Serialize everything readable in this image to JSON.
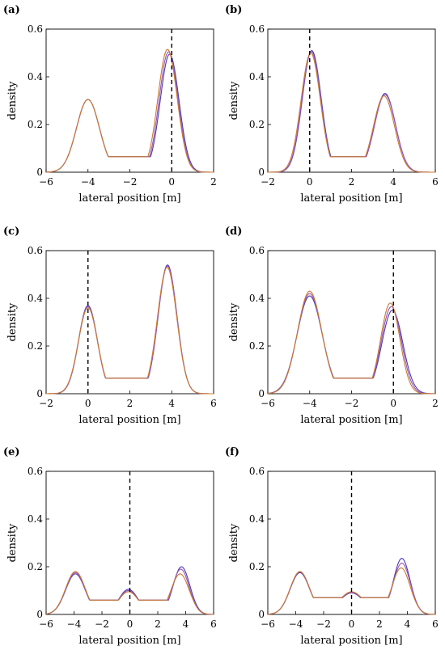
{
  "chart_data": [
    {
      "panel_label": "(a)",
      "type": "line",
      "xlabel": "lateral position [m]",
      "ylabel": "density",
      "xlim": [
        -6,
        2
      ],
      "ylim": [
        0,
        0.6
      ],
      "xticks": [
        -6,
        -4,
        -2,
        0,
        2
      ],
      "yticks": [
        0,
        0.2,
        0.4,
        0.6
      ],
      "dashed_vline_x": 0,
      "series": [
        {
          "color": "#4a3ab8",
          "peaks": [
            [
              -4.0,
              0.305,
              0.55
            ],
            [
              -0.1,
              0.495,
              0.45
            ]
          ],
          "baseline": 0.0
        },
        {
          "color": "#9b55b0",
          "peaks": [
            [
              -4.0,
              0.305,
              0.55
            ],
            [
              -0.15,
              0.505,
              0.45
            ]
          ],
          "baseline": 0.0
        },
        {
          "color": "#c97a30",
          "peaks": [
            [
              -4.0,
              0.305,
              0.55
            ],
            [
              -0.2,
              0.515,
              0.46
            ]
          ],
          "baseline": 0.0
        }
      ]
    },
    {
      "panel_label": "(b)",
      "type": "line",
      "xlabel": "lateral position [m]",
      "ylabel": "density",
      "xlim": [
        -2,
        6
      ],
      "ylim": [
        0,
        0.6
      ],
      "xticks": [
        -2,
        0,
        2,
        4,
        6
      ],
      "yticks": [
        0,
        0.2,
        0.4,
        0.6
      ],
      "dashed_vline_x": 0,
      "series": [
        {
          "color": "#4a3ab8",
          "peaks": [
            [
              0.1,
              0.51,
              0.45
            ],
            [
              3.6,
              0.33,
              0.5
            ]
          ],
          "baseline": 0.0
        },
        {
          "color": "#9b55b0",
          "peaks": [
            [
              0.08,
              0.505,
              0.45
            ],
            [
              3.6,
              0.325,
              0.5
            ]
          ],
          "baseline": 0.0
        },
        {
          "color": "#c97a30",
          "peaks": [
            [
              0.05,
              0.5,
              0.46
            ],
            [
              3.55,
              0.32,
              0.5
            ]
          ],
          "baseline": 0.0
        }
      ]
    },
    {
      "panel_label": "(c)",
      "type": "line",
      "xlabel": "lateral position [m]",
      "ylabel": "density",
      "xlim": [
        -2,
        6
      ],
      "ylim": [
        0,
        0.6
      ],
      "xticks": [
        -2,
        0,
        2,
        4,
        6
      ],
      "yticks": [
        0,
        0.2,
        0.4,
        0.6
      ],
      "dashed_vline_x": 0,
      "series": [
        {
          "color": "#4a3ab8",
          "peaks": [
            [
              0.0,
              0.37,
              0.45
            ],
            [
              3.8,
              0.54,
              0.45
            ]
          ],
          "baseline": 0.0
        },
        {
          "color": "#9b55b0",
          "peaks": [
            [
              0.0,
              0.365,
              0.45
            ],
            [
              3.8,
              0.535,
              0.45
            ]
          ],
          "baseline": 0.0
        },
        {
          "color": "#c97a30",
          "peaks": [
            [
              0.0,
              0.36,
              0.46
            ],
            [
              3.78,
              0.53,
              0.46
            ]
          ],
          "baseline": 0.0
        }
      ]
    },
    {
      "panel_label": "(d)",
      "type": "line",
      "xlabel": "lateral position [m]",
      "ylabel": "density",
      "xlim": [
        -6,
        2
      ],
      "ylim": [
        0,
        0.6
      ],
      "xticks": [
        -6,
        -4,
        -2,
        0,
        2
      ],
      "yticks": [
        0,
        0.2,
        0.4,
        0.6
      ],
      "dashed_vline_x": 0,
      "series": [
        {
          "color": "#4a3ab8",
          "peaks": [
            [
              -4.0,
              0.41,
              0.6
            ],
            [
              -0.05,
              0.35,
              0.5
            ]
          ],
          "baseline": 0.0
        },
        {
          "color": "#9b55b0",
          "peaks": [
            [
              -4.0,
              0.42,
              0.59
            ],
            [
              -0.1,
              0.365,
              0.48
            ]
          ],
          "baseline": 0.0
        },
        {
          "color": "#c97a30",
          "peaks": [
            [
              -4.0,
              0.43,
              0.58
            ],
            [
              -0.15,
              0.38,
              0.46
            ]
          ],
          "baseline": 0.0
        }
      ]
    },
    {
      "panel_label": "(e)",
      "type": "line",
      "xlabel": "lateral position [m]",
      "ylabel": "density",
      "xlim": [
        -6,
        6
      ],
      "ylim": [
        0,
        0.6
      ],
      "xticks": [
        -6,
        -4,
        -2,
        0,
        2,
        4,
        6
      ],
      "yticks": [
        0,
        0.2,
        0.4,
        0.6
      ],
      "dashed_vline_x": 0,
      "series": [
        {
          "color": "#4a3ab8",
          "peaks": [
            [
              -3.9,
              0.17,
              0.7
            ],
            [
              -0.1,
              0.105,
              0.7
            ],
            [
              3.7,
              0.2,
              0.6
            ]
          ],
          "baseline": 0.06
        },
        {
          "color": "#9b55b0",
          "peaks": [
            [
              -3.9,
              0.175,
              0.7
            ],
            [
              -0.1,
              0.1,
              0.7
            ],
            [
              3.65,
              0.19,
              0.6
            ]
          ],
          "baseline": 0.06
        },
        {
          "color": "#c97a30",
          "peaks": [
            [
              -3.9,
              0.18,
              0.7
            ],
            [
              -0.1,
              0.095,
              0.75
            ],
            [
              3.6,
              0.17,
              0.65
            ]
          ],
          "baseline": 0.06
        }
      ]
    },
    {
      "panel_label": "(f)",
      "type": "line",
      "xlabel": "lateral position [m]",
      "ylabel": "density",
      "xlim": [
        -6,
        6
      ],
      "ylim": [
        0,
        0.6
      ],
      "xticks": [
        -6,
        -4,
        -2,
        0,
        2,
        4,
        6
      ],
      "yticks": [
        0,
        0.2,
        0.4,
        0.6
      ],
      "dashed_vline_x": 0,
      "series": [
        {
          "color": "#4a3ab8",
          "peaks": [
            [
              -3.7,
              0.175,
              0.7
            ],
            [
              0.0,
              0.09,
              0.9
            ],
            [
              3.6,
              0.235,
              0.6
            ]
          ],
          "baseline": 0.07
        },
        {
          "color": "#9b55b0",
          "peaks": [
            [
              -3.7,
              0.178,
              0.7
            ],
            [
              0.0,
              0.092,
              0.9
            ],
            [
              3.6,
              0.215,
              0.62
            ]
          ],
          "baseline": 0.07
        },
        {
          "color": "#c97a30",
          "peaks": [
            [
              -3.7,
              0.18,
              0.7
            ],
            [
              0.0,
              0.095,
              0.9
            ],
            [
              3.55,
              0.195,
              0.65
            ]
          ],
          "baseline": 0.07
        }
      ]
    }
  ]
}
